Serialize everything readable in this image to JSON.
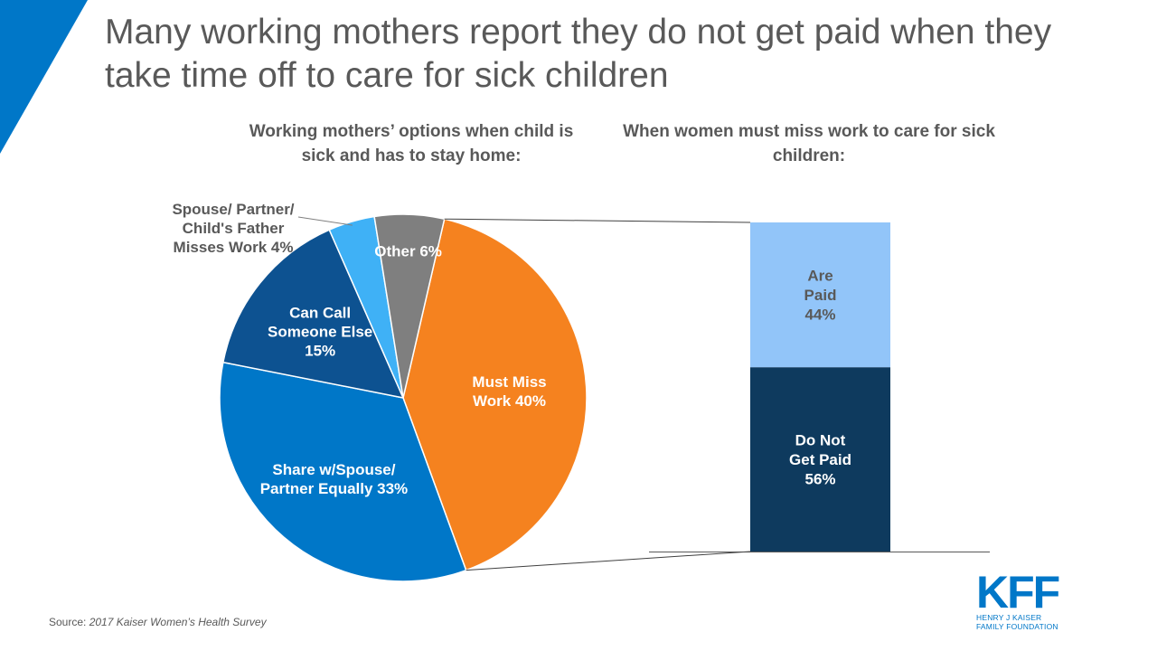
{
  "title": "Many working mothers report they do not get paid when they take time off to care for sick children",
  "chart_data": [
    {
      "type": "pie",
      "title": "Working mothers’ options when child is sick and has to stay home:",
      "slices": [
        {
          "label": "Must Miss Work 40%",
          "value": 40,
          "color": "#f5821f"
        },
        {
          "label": "Share w/Spouse/ Partner Equally 33%",
          "value": 33,
          "color": "#0077c8"
        },
        {
          "label": "Can Call Someone Else 15%",
          "value": 15,
          "color": "#0d5291"
        },
        {
          "label": "Spouse/ Partner/ Child's Father Misses Work 4%",
          "value": 4,
          "color": "#3fb1f6"
        },
        {
          "label": "Other 6%",
          "value": 6,
          "color": "#7f7f7f"
        }
      ]
    },
    {
      "type": "bar",
      "title": "When women must miss work to care for sick children:",
      "stacked": true,
      "segments": [
        {
          "label": "Do Not Get Paid 56%",
          "value": 56,
          "color": "#0e3a5e"
        },
        {
          "label": "Are Paid 44%",
          "value": 44,
          "color": "#92c5f9"
        }
      ]
    }
  ],
  "source": {
    "prefix": "Source:",
    "text": "2017 Kaiser Women’s Health Survey"
  },
  "logo": {
    "mark": "KFF",
    "line1": "HENRY J KAISER",
    "line2": "FAMILY FOUNDATION"
  }
}
